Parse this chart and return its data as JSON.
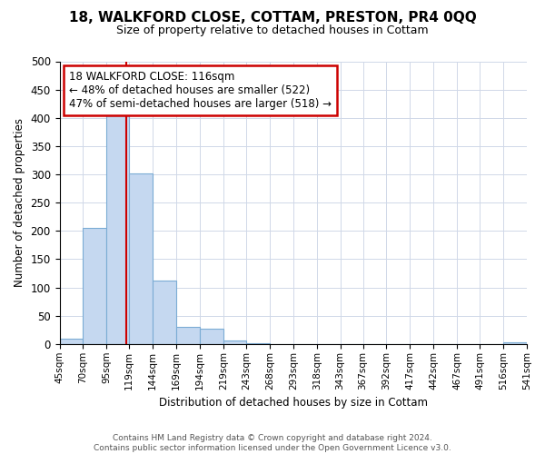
{
  "title": "18, WALKFORD CLOSE, COTTAM, PRESTON, PR4 0QQ",
  "subtitle": "Size of property relative to detached houses in Cottam",
  "xlabel": "Distribution of detached houses by size in Cottam",
  "ylabel": "Number of detached properties",
  "bin_edges": [
    45,
    70,
    95,
    119,
    144,
    169,
    194,
    219,
    243,
    268,
    293,
    318,
    343,
    367,
    392,
    417,
    442,
    467,
    491,
    516,
    541
  ],
  "bar_heights": [
    10,
    205,
    405,
    302,
    113,
    30,
    27,
    6,
    2,
    0,
    0,
    0,
    0,
    0,
    0,
    0,
    0,
    0,
    0,
    3
  ],
  "bar_fill_color": "#c5d8f0",
  "bar_edge_color": "#7bacd4",
  "vline_x": 116,
  "vline_color": "#cc0000",
  "annotation_lines": [
    "18 WALKFORD CLOSE: 116sqm",
    "← 48% of detached houses are smaller (522)",
    "47% of semi-detached houses are larger (518) →"
  ],
  "yticks": [
    0,
    50,
    100,
    150,
    200,
    250,
    300,
    350,
    400,
    450,
    500
  ],
  "xlim_left": 45,
  "xlim_right": 541,
  "ylim_top": 500,
  "tick_labels": [
    "45sqm",
    "70sqm",
    "95sqm",
    "119sqm",
    "144sqm",
    "169sqm",
    "194sqm",
    "219sqm",
    "243sqm",
    "268sqm",
    "293sqm",
    "318sqm",
    "343sqm",
    "367sqm",
    "392sqm",
    "417sqm",
    "442sqm",
    "467sqm",
    "491sqm",
    "516sqm",
    "541sqm"
  ],
  "footer_line1": "Contains HM Land Registry data © Crown copyright and database right 2024.",
  "footer_line2": "Contains public sector information licensed under the Open Government Licence v3.0.",
  "background_color": "#ffffff",
  "grid_color": "#d0d8e8",
  "title_fontsize": 11,
  "subtitle_fontsize": 9,
  "annotation_fontsize": 8.5,
  "ylabel_fontsize": 8.5,
  "xlabel_fontsize": 8.5,
  "ytick_fontsize": 8.5,
  "xtick_fontsize": 7.5,
  "footer_fontsize": 6.5
}
